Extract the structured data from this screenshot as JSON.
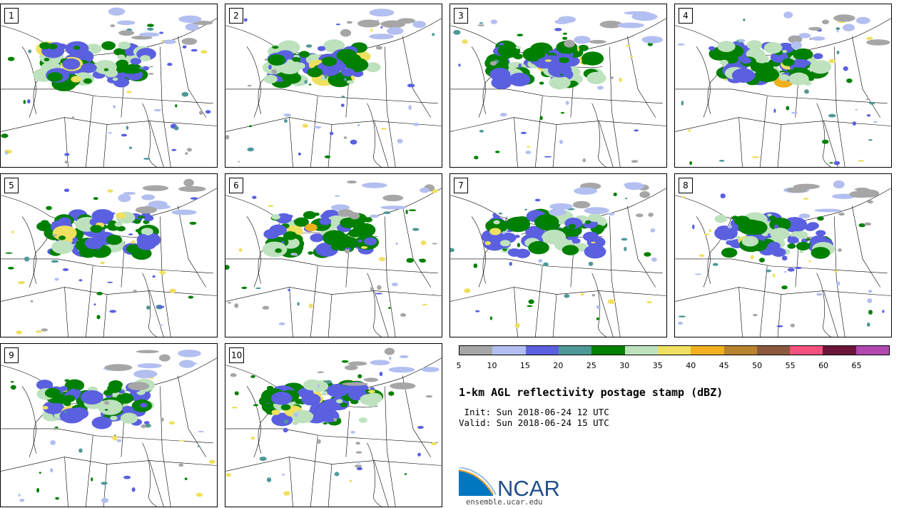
{
  "panels": [
    {
      "label": "1",
      "seed": 11
    },
    {
      "label": "2",
      "seed": 23
    },
    {
      "label": "3",
      "seed": 37
    },
    {
      "label": "4",
      "seed": 41
    },
    {
      "label": "5",
      "seed": 53
    },
    {
      "label": "6",
      "seed": 67
    },
    {
      "label": "7",
      "seed": 71
    },
    {
      "label": "8",
      "seed": 83
    },
    {
      "label": "9",
      "seed": 97
    },
    {
      "label": "10",
      "seed": 101
    }
  ],
  "colorbar": {
    "colors": [
      "#a6a6a6",
      "#b3bff0",
      "#5a60e0",
      "#4f9898",
      "#008000",
      "#bde2bd",
      "#f0e060",
      "#f0b020",
      "#b8822e",
      "#8b5a3c",
      "#f4517e",
      "#6b1538",
      "#b048b0"
    ],
    "tick_labels": [
      "5",
      "10",
      "15",
      "20",
      "25",
      "30",
      "35",
      "40",
      "45",
      "50",
      "55",
      "60",
      "65"
    ]
  },
  "legend": {
    "title": "1-km AGL reflectivity postage stamp (dBZ)",
    "init": " Init: Sun 2018-06-24 12 UTC",
    "valid": "Valid: Sun 2018-06-24 15 UTC"
  },
  "logo": {
    "text": "NCAR",
    "url": "ensemble.ucar.edu"
  }
}
